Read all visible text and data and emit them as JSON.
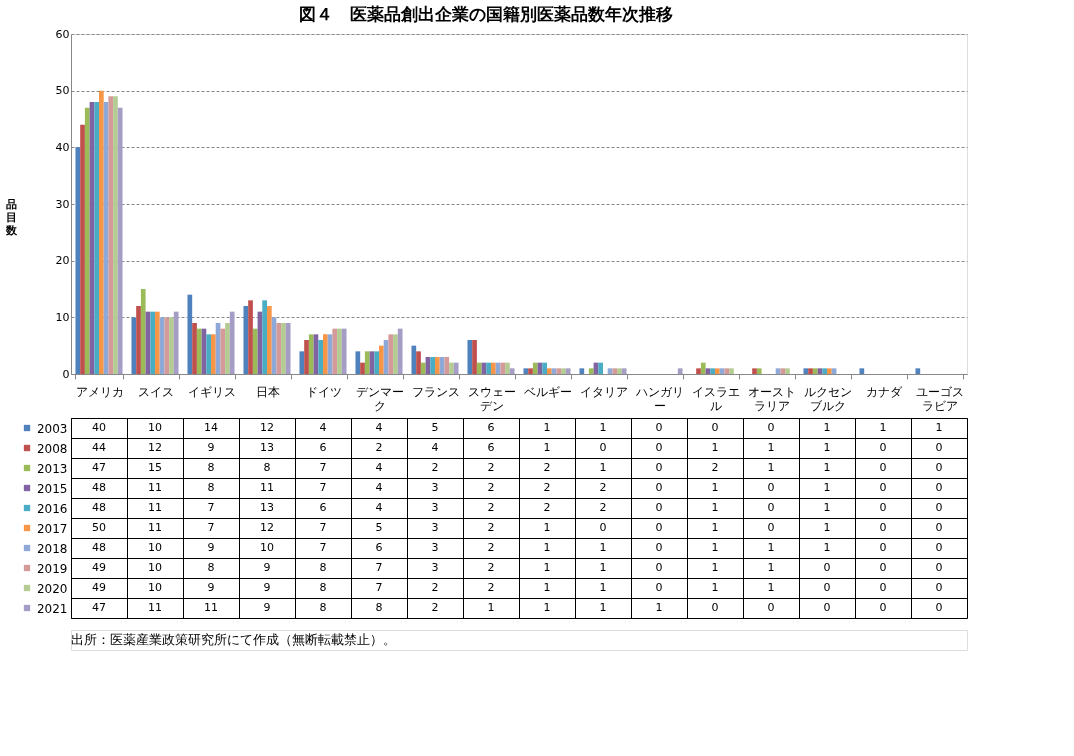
{
  "chart_data": {
    "type": "bar",
    "title": "図４　医薬品創出企業の国籍別医薬品数年次推移",
    "ylabel": "品目数",
    "categories": [
      "アメリカ",
      "スイス",
      "イギリス",
      "日本",
      "ドイツ",
      "デンマーク",
      "フランス",
      "スウェーデン",
      "ベルギー",
      "イタリア",
      "ハンガリー",
      "イスラエル",
      "オーストラリア",
      "ルクセンブルク",
      "カナダ",
      "ユーゴスラビア"
    ],
    "series": [
      {
        "name": "2003",
        "color": "#4f81bd",
        "values": [
          40,
          10,
          14,
          12,
          4,
          4,
          5,
          6,
          1,
          1,
          0,
          0,
          0,
          1,
          1,
          1
        ]
      },
      {
        "name": "2008",
        "color": "#c0504d",
        "values": [
          44,
          12,
          9,
          13,
          6,
          2,
          4,
          6,
          1,
          0,
          0,
          1,
          1,
          1,
          0,
          0
        ]
      },
      {
        "name": "2013",
        "color": "#9bbb59",
        "values": [
          47,
          15,
          8,
          8,
          7,
          4,
          2,
          2,
          2,
          1,
          0,
          2,
          1,
          1,
          0,
          0
        ]
      },
      {
        "name": "2015",
        "color": "#8064a2",
        "values": [
          48,
          11,
          8,
          11,
          7,
          4,
          3,
          2,
          2,
          2,
          0,
          1,
          0,
          1,
          0,
          0
        ]
      },
      {
        "name": "2016",
        "color": "#4bacc6",
        "values": [
          48,
          11,
          7,
          13,
          6,
          4,
          3,
          2,
          2,
          2,
          0,
          1,
          0,
          1,
          0,
          0
        ]
      },
      {
        "name": "2017",
        "color": "#f79646",
        "values": [
          50,
          11,
          7,
          12,
          7,
          5,
          3,
          2,
          1,
          0,
          0,
          1,
          0,
          1,
          0,
          0
        ]
      },
      {
        "name": "2018",
        "color": "#8ea9d8",
        "values": [
          48,
          10,
          9,
          10,
          7,
          6,
          3,
          2,
          1,
          1,
          0,
          1,
          1,
          1,
          0,
          0
        ]
      },
      {
        "name": "2019",
        "color": "#d49a9a",
        "values": [
          49,
          10,
          8,
          9,
          8,
          7,
          3,
          2,
          1,
          1,
          0,
          1,
          1,
          0,
          0,
          0
        ]
      },
      {
        "name": "2020",
        "color": "#b4cc94",
        "values": [
          49,
          10,
          9,
          9,
          8,
          7,
          2,
          2,
          1,
          1,
          0,
          1,
          1,
          0,
          0,
          0
        ]
      },
      {
        "name": "2021",
        "color": "#a69dc6",
        "values": [
          47,
          11,
          11,
          9,
          8,
          8,
          2,
          1,
          1,
          1,
          1,
          0,
          0,
          0,
          0,
          0
        ]
      }
    ],
    "ylim": [
      0,
      60
    ],
    "yticks": [
      0,
      10,
      20,
      30,
      40,
      50,
      60
    ],
    "grid": "y",
    "legend": "bottom left",
    "data_labels": true,
    "annotations": [
      "出所：医薬産業政策研究所にて作成（無断転載禁止）。"
    ]
  }
}
